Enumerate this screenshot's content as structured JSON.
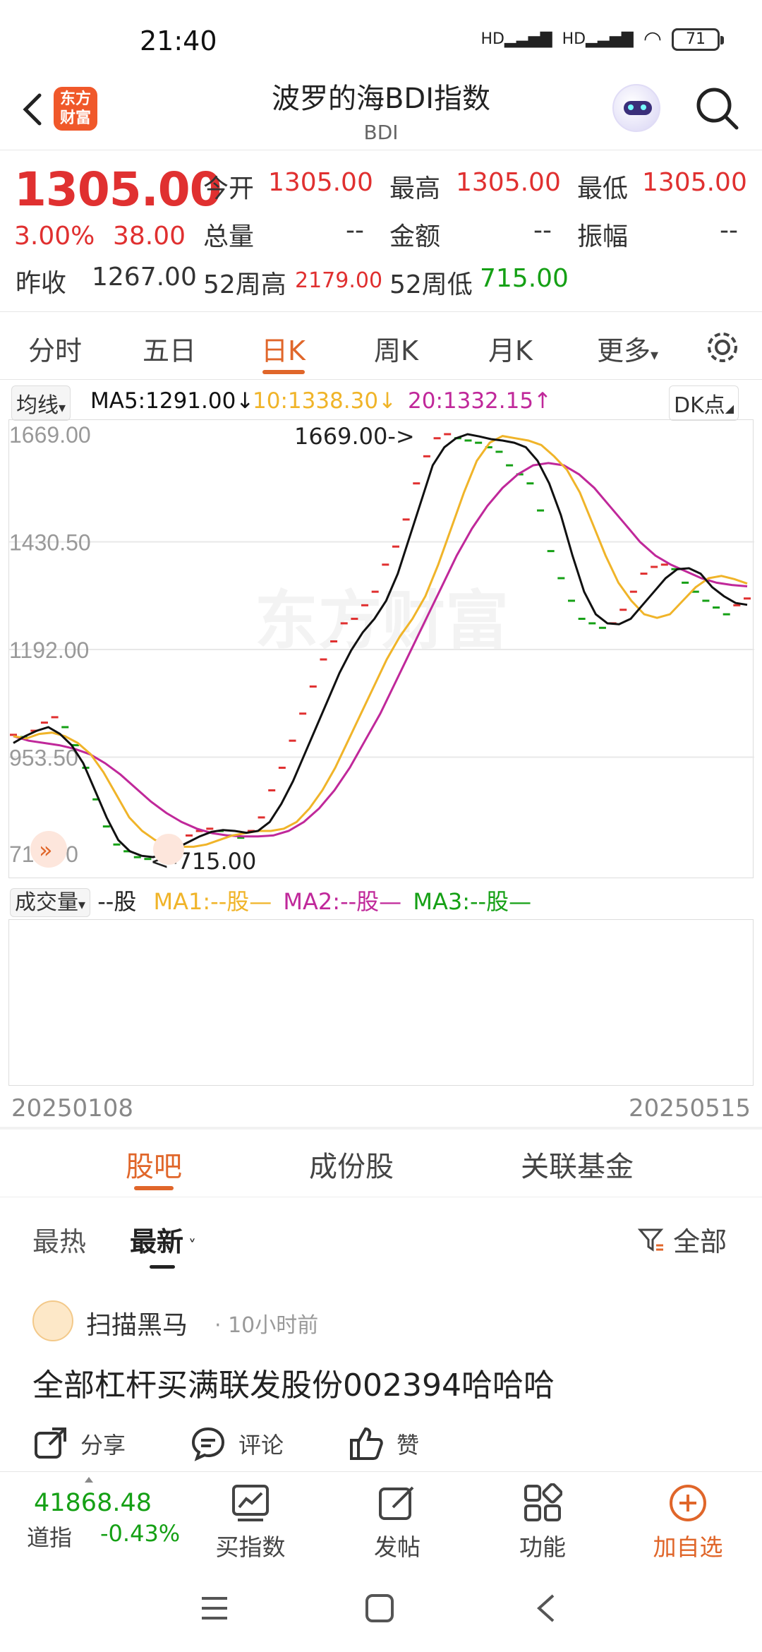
{
  "status": {
    "time": "21:40",
    "signal1": "HD",
    "signal2": "HD",
    "battery": "71"
  },
  "header": {
    "logo": "东方财富",
    "title": "波罗的海BDI指数",
    "subtitle": "BDI"
  },
  "quote": {
    "price": "1305.00",
    "pct": "3.00%",
    "change": "38.00",
    "open_label": "今开",
    "open": "1305.00",
    "high_label": "最高",
    "high": "1305.00",
    "low_label": "最低",
    "low": "1305.00",
    "vol_label": "总量",
    "vol": "--",
    "amt_label": "金额",
    "amt": "--",
    "amp_label": "振幅",
    "amp": "--",
    "prev_label": "昨收",
    "prev": "1267.00",
    "w52h_label": "52周高",
    "w52h": "2179.00",
    "w52l_label": "52周低",
    "w52l": "715.00"
  },
  "tabs": [
    "分时",
    "五日",
    "日K",
    "周K",
    "月K",
    "更多"
  ],
  "active_tab": 2,
  "ma": {
    "selector": "均线",
    "ma5": "MA5:1291.00",
    "ma5_arrow": "↓",
    "ma10": "10:1338.30",
    "ma10_arrow": "↓",
    "ma20": "20:1332.15",
    "ma20_arrow": "↑",
    "dk": "DK点"
  },
  "colors": {
    "up": "#e03030",
    "down": "#15a015",
    "ma5": "#111111",
    "ma10": "#f0b429",
    "ma20": "#c0289a",
    "accent": "#e0662a"
  },
  "chart_data": {
    "type": "line",
    "y_ticks": [
      "1669.00",
      "1430.50",
      "1192.00",
      "953.50",
      "715.00"
    ],
    "ylim": [
      715,
      1669
    ],
    "high_label": "1669.00->",
    "low_label": "<-715.00",
    "watermark": "东方财富",
    "x_start": "20250108",
    "x_end": "20250515",
    "candles": [
      1003,
      998,
      1012,
      1030,
      1042,
      1020,
      980,
      930,
      860,
      800,
      760,
      745,
      732,
      728,
      735,
      745,
      760,
      780,
      790,
      795,
      790,
      780,
      775,
      790,
      820,
      880,
      930,
      990,
      1050,
      1110,
      1170,
      1210,
      1250,
      1260,
      1290,
      1320,
      1380,
      1420,
      1480,
      1560,
      1620,
      1660,
      1669,
      1660,
      1655,
      1650,
      1640,
      1630,
      1600,
      1580,
      1560,
      1500,
      1410,
      1350,
      1300,
      1260,
      1250,
      1240,
      1250,
      1280,
      1320,
      1360,
      1375,
      1380,
      1370,
      1340,
      1320,
      1300,
      1285,
      1270,
      1290,
      1305
    ],
    "ma5": [
      985,
      1000,
      1012,
      1020,
      1005,
      980,
      940,
      880,
      820,
      770,
      745,
      735,
      732,
      740,
      752,
      765,
      778,
      788,
      792,
      790,
      786,
      790,
      810,
      850,
      900,
      960,
      1020,
      1080,
      1140,
      1190,
      1230,
      1260,
      1300,
      1360,
      1440,
      1520,
      1600,
      1640,
      1660,
      1669,
      1664,
      1658,
      1655,
      1650,
      1640,
      1610,
      1560,
      1490,
      1400,
      1320,
      1270,
      1250,
      1248,
      1260,
      1290,
      1320,
      1350,
      1370,
      1372,
      1360,
      1330,
      1310,
      1295,
      1291
    ],
    "ma10": [
      1000,
      995,
      1005,
      1008,
      1000,
      985,
      960,
      920,
      870,
      820,
      790,
      770,
      760,
      755,
      755,
      760,
      770,
      780,
      785,
      790,
      790,
      795,
      810,
      840,
      880,
      930,
      990,
      1050,
      1110,
      1170,
      1220,
      1260,
      1310,
      1380,
      1460,
      1540,
      1610,
      1650,
      1665,
      1660,
      1655,
      1645,
      1620,
      1590,
      1540,
      1470,
      1400,
      1340,
      1300,
      1270,
      1262,
      1270,
      1300,
      1330,
      1350,
      1355,
      1348,
      1338
    ],
    "ma20": [
      1000,
      990,
      985,
      980,
      972,
      960,
      940,
      915,
      885,
      855,
      830,
      810,
      795,
      785,
      780,
      778,
      778,
      780,
      790,
      810,
      840,
      880,
      930,
      990,
      1050,
      1120,
      1190,
      1260,
      1330,
      1400,
      1460,
      1510,
      1550,
      1580,
      1600,
      1605,
      1600,
      1580,
      1550,
      1510,
      1470,
      1430,
      1400,
      1380,
      1365,
      1350,
      1340,
      1335,
      1332
    ]
  },
  "volume": {
    "selector": "成交量",
    "unit": "--股",
    "ma1": "MA1:--股—",
    "ma2": "MA2:--股—",
    "ma3": "MA3:--股—"
  },
  "guba_tabs": [
    "股吧",
    "成份股",
    "关联基金"
  ],
  "sort": {
    "hot": "最热",
    "new": "最新",
    "filter": "全部"
  },
  "post": {
    "author": "扫描黑马",
    "time": "· 10小时前",
    "content": "全部杠杆买满联发股份002394哈哈哈",
    "share": "分享",
    "comment": "评论",
    "like": "赞"
  },
  "bottom": {
    "index_value": "41868.48",
    "index_name": "道指",
    "index_change": "-0.43%",
    "buy": "买指数",
    "post": "发帖",
    "func": "功能",
    "add": "加自选"
  }
}
